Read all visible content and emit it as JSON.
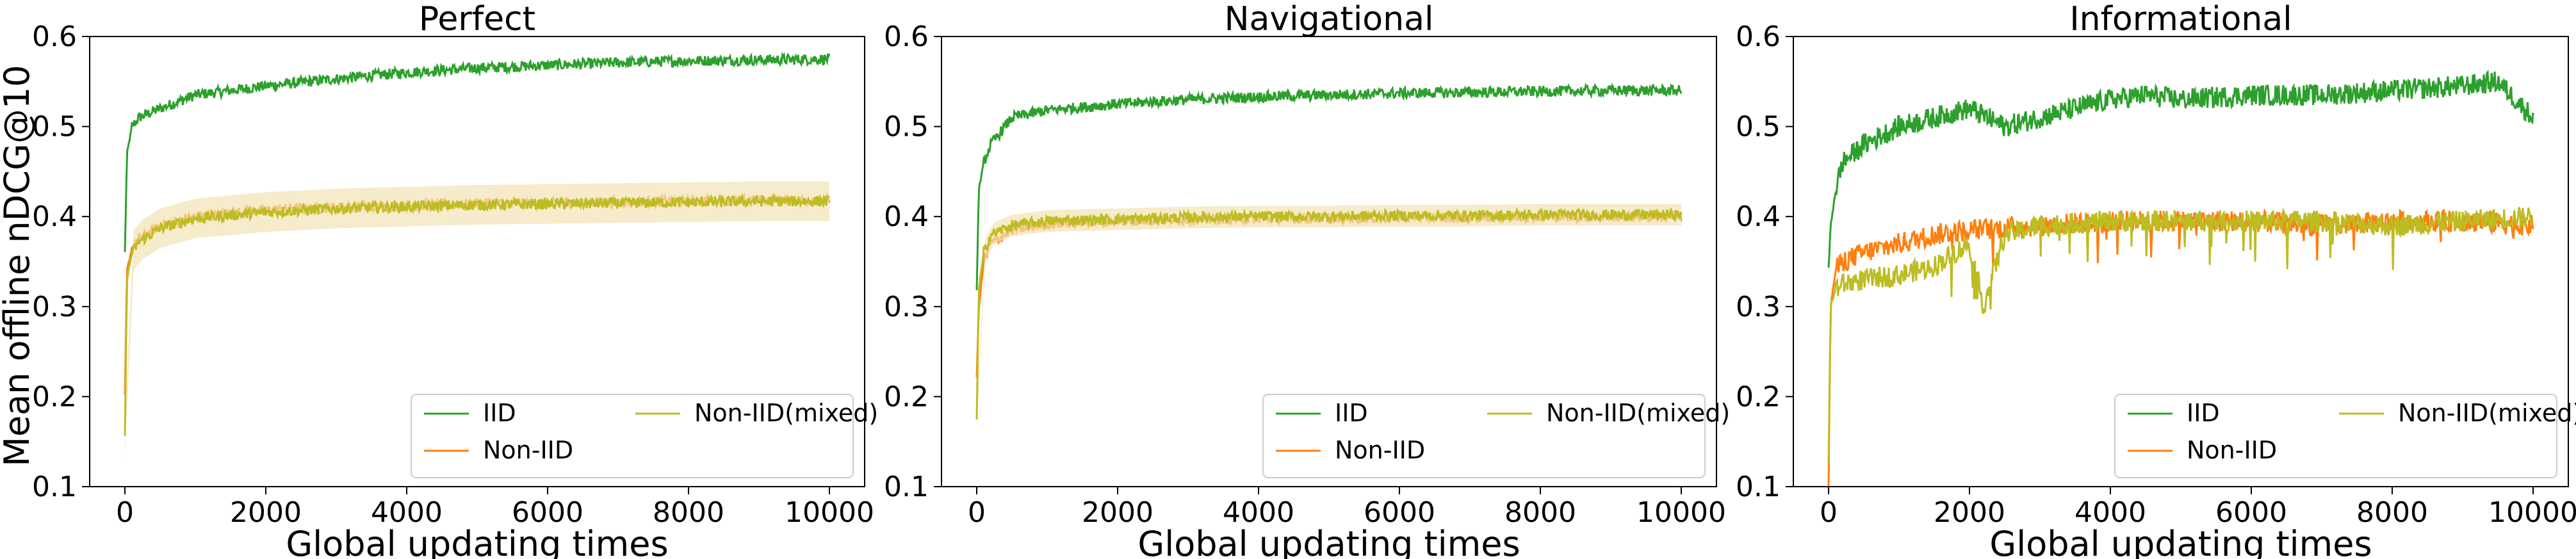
{
  "figure": {
    "ylabel": "Mean offline nDCG@10",
    "xlabel": "Global updating times"
  },
  "colors": {
    "IID": "#2ca02c",
    "Non-IID": "#ff7f0e",
    "Non-IID(mixed)": "#bcbd22",
    "band": "#f2e3b3"
  },
  "chart_data": [
    {
      "type": "line",
      "title": "Perfect",
      "xlabel": "Global updating times",
      "ylabel": "Mean offline nDCG@10",
      "xlim": [
        -500,
        10500
      ],
      "ylim": [
        0.1,
        0.6
      ],
      "xticks": [
        0,
        2000,
        4000,
        6000,
        8000,
        10000
      ],
      "yticks": [
        0.1,
        0.2,
        0.3,
        0.4,
        0.5,
        0.6
      ],
      "legend": {
        "placement": "lower-right",
        "columns": 2
      },
      "series": [
        {
          "name": "IID",
          "x": [
            0,
            30,
            100,
            200,
            500,
            1000,
            2000,
            3000,
            4000,
            5000,
            6000,
            7000,
            8000,
            9000,
            10000
          ],
          "y": [
            0.36,
            0.47,
            0.5,
            0.51,
            0.52,
            0.535,
            0.545,
            0.553,
            0.56,
            0.565,
            0.568,
            0.571,
            0.573,
            0.574,
            0.575
          ]
        },
        {
          "name": "Non-IID",
          "x": [
            0,
            30,
            100,
            200,
            500,
            1000,
            2000,
            3000,
            4000,
            5000,
            6000,
            7000,
            8000,
            9000,
            10000
          ],
          "y": [
            0.2,
            0.34,
            0.365,
            0.375,
            0.39,
            0.4,
            0.407,
            0.41,
            0.412,
            0.414,
            0.415,
            0.416,
            0.417,
            0.418,
            0.418
          ]
        },
        {
          "name": "Non-IID(mixed)",
          "x": [
            0,
            30,
            100,
            200,
            500,
            1000,
            2000,
            3000,
            4000,
            5000,
            6000,
            7000,
            8000,
            9000,
            10000
          ],
          "y": [
            0.155,
            0.33,
            0.36,
            0.372,
            0.387,
            0.398,
            0.405,
            0.409,
            0.411,
            0.413,
            0.414,
            0.415,
            0.416,
            0.417,
            0.417
          ]
        }
      ]
    },
    {
      "type": "line",
      "title": "Navigational",
      "xlim": [
        -500,
        10500
      ],
      "ylim": [
        0.1,
        0.6
      ],
      "xticks": [
        0,
        2000,
        4000,
        6000,
        8000,
        10000
      ],
      "yticks": [
        0.1,
        0.2,
        0.3,
        0.4,
        0.5,
        0.6
      ],
      "legend": {
        "placement": "lower-right",
        "columns": 2
      },
      "series": [
        {
          "name": "IID",
          "x": [
            0,
            30,
            100,
            200,
            500,
            1000,
            2000,
            3000,
            4000,
            5000,
            6000,
            7000,
            8000,
            9000,
            10000
          ],
          "y": [
            0.32,
            0.43,
            0.46,
            0.48,
            0.51,
            0.518,
            0.525,
            0.53,
            0.533,
            0.535,
            0.537,
            0.538,
            0.539,
            0.54,
            0.54
          ]
        },
        {
          "name": "Non-IID",
          "x": [
            0,
            30,
            100,
            200,
            500,
            1000,
            2000,
            3000,
            4000,
            5000,
            6000,
            7000,
            8000,
            9000,
            10000
          ],
          "y": [
            0.22,
            0.3,
            0.35,
            0.37,
            0.385,
            0.392,
            0.395,
            0.397,
            0.398,
            0.398,
            0.399,
            0.399,
            0.4,
            0.4,
            0.4
          ]
        },
        {
          "name": "Non-IID(mixed)",
          "x": [
            0,
            30,
            100,
            200,
            500,
            1000,
            2000,
            3000,
            4000,
            5000,
            6000,
            7000,
            8000,
            9000,
            10000
          ],
          "y": [
            0.175,
            0.32,
            0.36,
            0.38,
            0.39,
            0.395,
            0.397,
            0.399,
            0.4,
            0.4,
            0.401,
            0.401,
            0.402,
            0.402,
            0.402
          ]
        }
      ]
    },
    {
      "type": "line",
      "title": "Informational",
      "xlim": [
        -500,
        10500
      ],
      "ylim": [
        0.1,
        0.6
      ],
      "xticks": [
        0,
        2000,
        4000,
        6000,
        8000,
        10000
      ],
      "yticks": [
        0.1,
        0.2,
        0.3,
        0.4,
        0.5,
        0.6
      ],
      "legend": {
        "placement": "lower-right",
        "columns": 2
      },
      "series": [
        {
          "name": "IID",
          "x": [
            0,
            30,
            100,
            200,
            500,
            1000,
            1500,
            2000,
            2500,
            3000,
            3500,
            4000,
            4500,
            5000,
            6000,
            7000,
            8000,
            9000,
            9500,
            10000
          ],
          "y": [
            0.34,
            0.39,
            0.43,
            0.46,
            0.48,
            0.5,
            0.51,
            0.52,
            0.5,
            0.51,
            0.52,
            0.53,
            0.535,
            0.53,
            0.535,
            0.535,
            0.54,
            0.545,
            0.55,
            0.51
          ]
        },
        {
          "name": "Non-IID",
          "x": [
            0,
            30,
            100,
            200,
            500,
            1000,
            1500,
            2000,
            3000,
            4000,
            5000,
            6000,
            7000,
            8000,
            9000,
            10000
          ],
          "y": [
            0.1,
            0.3,
            0.34,
            0.35,
            0.36,
            0.37,
            0.38,
            0.385,
            0.39,
            0.395,
            0.395,
            0.395,
            0.39,
            0.395,
            0.395,
            0.39
          ]
        },
        {
          "name": "Non-IID(mixed)",
          "x": [
            0,
            30,
            100,
            200,
            500,
            1000,
            1500,
            2000,
            2200,
            2500,
            3000,
            4000,
            5000,
            6000,
            7000,
            8000,
            9000,
            10000
          ],
          "y": [
            0.13,
            0.3,
            0.32,
            0.325,
            0.33,
            0.335,
            0.345,
            0.37,
            0.3,
            0.38,
            0.39,
            0.395,
            0.395,
            0.395,
            0.395,
            0.39,
            0.395,
            0.4
          ]
        }
      ]
    }
  ]
}
